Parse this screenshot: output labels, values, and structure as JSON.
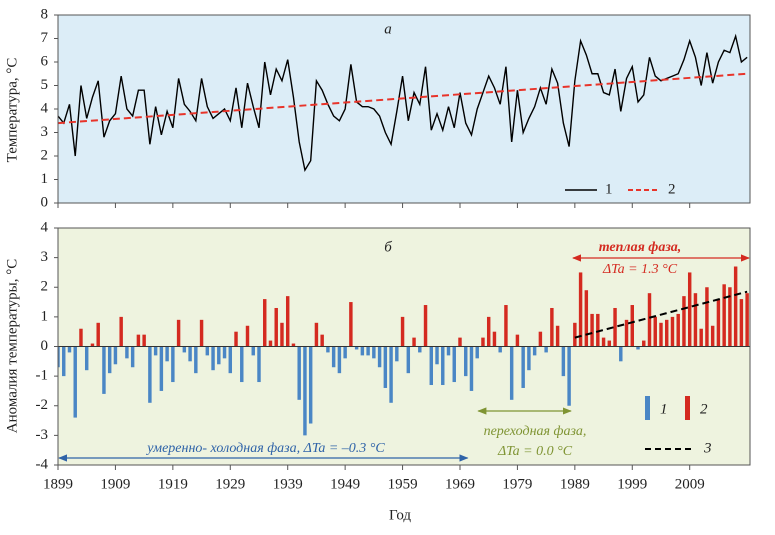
{
  "chart_data": [
    {
      "type": "line",
      "title": "а",
      "ylabel": "Температура, °C",
      "x": [
        1899,
        1900,
        1901,
        1902,
        1903,
        1904,
        1905,
        1906,
        1907,
        1908,
        1909,
        1910,
        1911,
        1912,
        1913,
        1914,
        1915,
        1916,
        1917,
        1918,
        1919,
        1920,
        1921,
        1922,
        1923,
        1924,
        1925,
        1926,
        1927,
        1928,
        1929,
        1930,
        1931,
        1932,
        1933,
        1934,
        1935,
        1936,
        1937,
        1938,
        1939,
        1940,
        1941,
        1942,
        1943,
        1944,
        1945,
        1946,
        1947,
        1948,
        1949,
        1950,
        1951,
        1952,
        1953,
        1954,
        1955,
        1956,
        1957,
        1958,
        1959,
        1960,
        1961,
        1962,
        1963,
        1964,
        1965,
        1966,
        1967,
        1968,
        1969,
        1970,
        1971,
        1972,
        1973,
        1974,
        1975,
        1976,
        1977,
        1978,
        1979,
        1980,
        1981,
        1982,
        1983,
        1984,
        1985,
        1986,
        1987,
        1988,
        1989,
        1990,
        1991,
        1992,
        1993,
        1994,
        1995,
        1996,
        1997,
        1998,
        1999,
        2000,
        2001,
        2002,
        2003,
        2004,
        2005,
        2006,
        2007,
        2008,
        2009,
        2010,
        2011,
        2012,
        2013,
        2014,
        2015,
        2016,
        2017,
        2018,
        2019
      ],
      "xlim": [
        1899,
        2019.5
      ],
      "ylim": [
        0,
        8
      ],
      "yticks": [
        0,
        1,
        2,
        3,
        4,
        5,
        6,
        7,
        8
      ],
      "legend": "lower right",
      "series": [
        {
          "name": "1",
          "color": "#000000",
          "values": [
            3.7,
            3.4,
            4.2,
            2.0,
            5.0,
            3.6,
            4.5,
            5.2,
            2.8,
            3.5,
            3.8,
            5.4,
            4.0,
            3.7,
            4.8,
            4.8,
            2.5,
            4.1,
            2.9,
            3.9,
            3.2,
            5.3,
            4.2,
            3.9,
            3.5,
            5.3,
            4.1,
            3.6,
            3.8,
            4.0,
            3.5,
            4.9,
            3.2,
            5.1,
            4.1,
            3.2,
            6.0,
            4.6,
            5.7,
            5.2,
            6.1,
            4.5,
            2.6,
            1.4,
            1.8,
            5.2,
            4.8,
            4.2,
            3.7,
            3.5,
            4.0,
            5.9,
            4.3,
            4.1,
            4.1,
            4.0,
            3.7,
            3.0,
            2.5,
            3.9,
            5.4,
            3.5,
            4.7,
            4.2,
            5.8,
            3.1,
            3.8,
            3.1,
            4.1,
            3.2,
            4.7,
            3.4,
            2.9,
            4.0,
            4.7,
            5.4,
            4.9,
            4.2,
            5.8,
            2.6,
            4.8,
            3.0,
            3.6,
            4.1,
            4.9,
            4.2,
            5.7,
            5.1,
            3.4,
            2.4,
            5.2,
            6.9,
            6.3,
            5.5,
            5.5,
            4.7,
            4.6,
            5.7,
            3.9,
            5.3,
            5.8,
            4.3,
            4.6,
            6.2,
            5.4,
            5.2,
            5.3,
            5.4,
            5.5,
            6.1,
            6.9,
            6.2,
            5.0,
            6.4,
            5.1,
            6.0,
            6.5,
            6.4,
            7.1,
            6.0,
            6.2
          ]
        },
        {
          "name": "2",
          "color": "#e8342a",
          "dashed": true,
          "x": [
            1899,
            2019
          ],
          "values": [
            3.4,
            5.5
          ]
        }
      ]
    },
    {
      "type": "bar",
      "title": "б",
      "ylabel": "Аномалия температуры, °C",
      "xlabel": "Год",
      "x": [
        1899,
        1900,
        1901,
        1902,
        1903,
        1904,
        1905,
        1906,
        1907,
        1908,
        1909,
        1910,
        1911,
        1912,
        1913,
        1914,
        1915,
        1916,
        1917,
        1918,
        1919,
        1920,
        1921,
        1922,
        1923,
        1924,
        1925,
        1926,
        1927,
        1928,
        1929,
        1930,
        1931,
        1932,
        1933,
        1934,
        1935,
        1936,
        1937,
        1938,
        1939,
        1940,
        1941,
        1942,
        1943,
        1944,
        1945,
        1946,
        1947,
        1948,
        1949,
        1950,
        1951,
        1952,
        1953,
        1954,
        1955,
        1956,
        1957,
        1958,
        1959,
        1960,
        1961,
        1962,
        1963,
        1964,
        1965,
        1966,
        1967,
        1968,
        1969,
        1970,
        1971,
        1972,
        1973,
        1974,
        1975,
        1976,
        1977,
        1978,
        1979,
        1980,
        1981,
        1982,
        1983,
        1984,
        1985,
        1986,
        1987,
        1988,
        1989,
        1990,
        1991,
        1992,
        1993,
        1994,
        1995,
        1996,
        1997,
        1998,
        1999,
        2000,
        2001,
        2002,
        2003,
        2004,
        2005,
        2006,
        2007,
        2008,
        2009,
        2010,
        2011,
        2012,
        2013,
        2014,
        2015,
        2016,
        2017,
        2018,
        2019
      ],
      "xlim": [
        1899,
        2019.5
      ],
      "xticks": [
        1899,
        1909,
        1919,
        1929,
        1939,
        1949,
        1959,
        1969,
        1979,
        1989,
        1999,
        2009
      ],
      "ylim": [
        -4,
        4
      ],
      "yticks": [
        -4,
        -3,
        -2,
        -1,
        0,
        1,
        2,
        3,
        4
      ],
      "legend": "lower right",
      "values": [
        -0.7,
        -1.0,
        -0.2,
        -2.4,
        0.6,
        -0.8,
        0.1,
        0.8,
        -1.6,
        -0.9,
        -0.6,
        1.0,
        -0.4,
        -0.7,
        0.4,
        0.4,
        -1.9,
        -0.3,
        -1.5,
        -0.5,
        -1.2,
        0.9,
        -0.2,
        -0.5,
        -0.9,
        0.9,
        -0.3,
        -0.8,
        -0.6,
        -0.4,
        -0.9,
        0.5,
        -1.2,
        0.7,
        -0.3,
        -1.2,
        1.6,
        0.2,
        1.3,
        0.8,
        1.7,
        0.1,
        -1.8,
        -3.0,
        -2.6,
        0.8,
        0.4,
        -0.2,
        -0.7,
        -0.9,
        -0.4,
        1.5,
        -0.1,
        -0.3,
        -0.3,
        -0.4,
        -0.7,
        -1.4,
        -1.9,
        -0.5,
        1.0,
        -0.9,
        0.3,
        -0.2,
        1.4,
        -1.3,
        -0.6,
        -1.3,
        -0.3,
        -1.2,
        0.3,
        -1.0,
        -1.5,
        -0.4,
        0.3,
        1.0,
        0.5,
        -0.2,
        1.4,
        -1.8,
        0.4,
        -1.4,
        -0.8,
        -0.3,
        0.5,
        -0.2,
        1.3,
        0.7,
        -1.0,
        -2.0,
        0.8,
        2.5,
        1.9,
        1.1,
        1.1,
        0.3,
        0.2,
        1.3,
        -0.5,
        0.9,
        1.4,
        -0.1,
        0.2,
        1.8,
        1.0,
        0.8,
        0.9,
        1.0,
        1.1,
        1.7,
        2.5,
        1.8,
        0.6,
        2.0,
        0.7,
        1.6,
        2.1,
        2.0,
        2.7,
        1.6,
        1.8
      ],
      "negative": {
        "name": "1",
        "color": "#4a86c5"
      },
      "positive": {
        "name": "2",
        "color": "#d42a20"
      },
      "trend": {
        "name": "3",
        "color": "#000000",
        "x": [
          1989,
          2019
        ],
        "values": [
          0.3,
          1.85
        ]
      },
      "annotations": [
        {
          "lines": [
            "теплая фаза,",
            "ΔTa = 1.3 °C"
          ],
          "span": [
            1988.5,
            2019.5
          ]
        },
        {
          "lines": [
            "переходная фаза,",
            "ΔTa = 0.0 °C"
          ],
          "span": [
            1972,
            1988.5
          ]
        },
        {
          "lines": [
            "умеренно- холодная фаза, ΔTa = –0.3 °C"
          ],
          "span": [
            1899,
            1970.5
          ]
        }
      ]
    }
  ]
}
